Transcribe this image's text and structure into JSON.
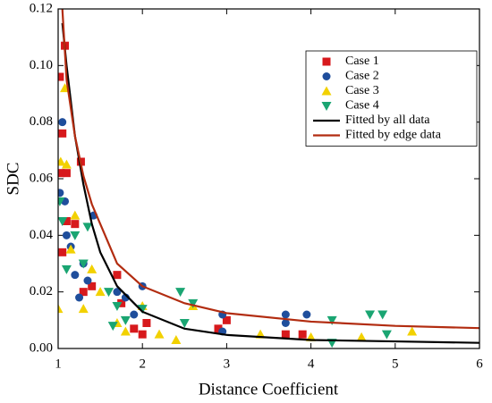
{
  "chart_data": {
    "type": "scatter",
    "xlabel": "Distance Coefficient",
    "ylabel": "SDC",
    "xlim": [
      1,
      6
    ],
    "ylim": [
      0,
      0.12
    ],
    "xticks": [
      1,
      2,
      3,
      4,
      5,
      6
    ],
    "yticks": [
      {
        "value": 0,
        "label": "0.00"
      },
      0.02,
      0.04,
      0.06,
      0.08,
      {
        "value": 0.1,
        "label": "0.10"
      },
      0.12
    ],
    "legend": "upper right",
    "series": [
      {
        "name": "Case 1",
        "color": "#d7191c",
        "marker": "square",
        "x": [
          1.02,
          1.08,
          1.05,
          1.03,
          1.1,
          1.27,
          1.2,
          1.3,
          1.4,
          1.7,
          1.75,
          1.9,
          2,
          2.05,
          3,
          2.9,
          3.7,
          3.9,
          1.05,
          1.1
        ],
        "values": [
          0.096,
          0.107,
          0.076,
          0.062,
          0.062,
          0.066,
          0.044,
          0.02,
          0.022,
          0.026,
          0.016,
          0.007,
          0.005,
          0.009,
          0.01,
          0.007,
          0.005,
          0.005,
          0.034,
          0.045
        ]
      },
      {
        "name": "Case 2",
        "color": "#1f4e9c",
        "marker": "circle",
        "x": [
          1.05,
          1.02,
          1.1,
          1.15,
          1.2,
          1.3,
          1.35,
          1.42,
          1.7,
          1.8,
          2,
          1.9,
          2.95,
          2.95,
          3.7,
          3.7,
          3.95,
          1.08,
          1.25
        ],
        "values": [
          0.08,
          0.055,
          0.04,
          0.036,
          0.026,
          0.03,
          0.024,
          0.047,
          0.02,
          0.018,
          0.022,
          0.012,
          0.012,
          0.006,
          0.012,
          0.009,
          0.012,
          0.052,
          0.018
        ]
      },
      {
        "name": "Case 3",
        "color": "#f2d100",
        "marker": "triangle-up",
        "x": [
          1.08,
          1.03,
          1.0,
          1.1,
          1.2,
          1.3,
          1.4,
          1.5,
          1.7,
          1.8,
          2,
          2.2,
          2.4,
          2.6,
          3.4,
          4,
          4.6,
          5.2,
          1.15
        ],
        "values": [
          0.092,
          0.066,
          0.014,
          0.065,
          0.047,
          0.014,
          0.028,
          0.02,
          0.009,
          0.006,
          0.015,
          0.005,
          0.003,
          0.015,
          0.005,
          0.004,
          0.004,
          0.006,
          0.035
        ]
      },
      {
        "name": "Case 4",
        "color": "#1aa572",
        "marker": "triangle-down",
        "x": [
          1.02,
          1.05,
          1.1,
          1.2,
          1.3,
          1.35,
          1.6,
          1.7,
          1.8,
          2,
          2.45,
          2.6,
          2.5,
          4.25,
          4.25,
          4.7,
          4.85,
          4.9,
          1.65
        ],
        "values": [
          0.052,
          0.045,
          0.028,
          0.04,
          0.03,
          0.043,
          0.02,
          0.015,
          0.01,
          0.014,
          0.02,
          0.016,
          0.009,
          0.01,
          0.002,
          0.012,
          0.012,
          0.005,
          0.008
        ]
      },
      {
        "name": "Fitted by all data",
        "color": "#000000",
        "marker": "line",
        "x": [
          1.05,
          1.1,
          1.2,
          1.3,
          1.4,
          1.5,
          1.7,
          2,
          2.5,
          3,
          4,
          5,
          6
        ],
        "values": [
          0.115,
          0.1,
          0.075,
          0.058,
          0.044,
          0.034,
          0.022,
          0.013,
          0.007,
          0.0048,
          0.003,
          0.0025,
          0.002
        ]
      },
      {
        "name": "Fitted by edge data",
        "color": "#b22c10",
        "marker": "line",
        "x": [
          1.05,
          1.1,
          1.2,
          1.3,
          1.4,
          1.5,
          1.7,
          2,
          2.5,
          3,
          4,
          5,
          6
        ],
        "values": [
          0.12,
          0.095,
          0.075,
          0.061,
          0.051,
          0.044,
          0.03,
          0.022,
          0.016,
          0.0125,
          0.0095,
          0.008,
          0.0072
        ]
      }
    ]
  }
}
